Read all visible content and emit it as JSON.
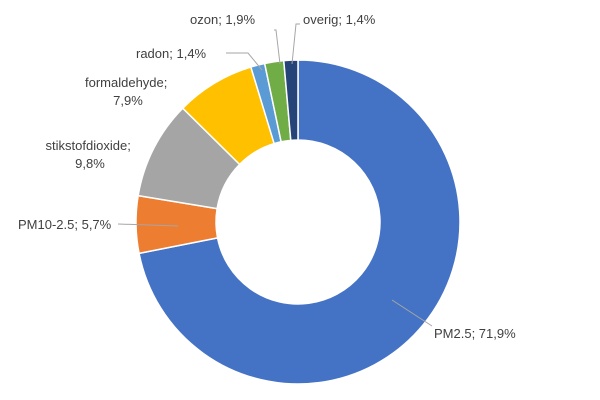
{
  "chart_data": {
    "type": "pie",
    "variant": "donut",
    "title": "",
    "legend": "none",
    "slices": [
      {
        "label": "PM2.5",
        "value": 71.9,
        "value_label": "71,9%",
        "color": "#4472c4"
      },
      {
        "label": "PM10-2.5",
        "value": 5.7,
        "value_label": "5,7%",
        "color": "#ed7d31"
      },
      {
        "label": "stikstofdioxide",
        "value": 9.8,
        "value_label": "9,8%",
        "color": "#a5a5a5"
      },
      {
        "label": "formaldehyde",
        "value": 7.9,
        "value_label": "7,9%",
        "color": "#ffc000"
      },
      {
        "label": "radon",
        "value": 1.4,
        "value_label": "1,4%",
        "color": "#5b9bd5"
      },
      {
        "label": "ozon",
        "value": 1.9,
        "value_label": "1,9%",
        "color": "#70ad47"
      },
      {
        "label": "overig",
        "value": 1.4,
        "value_label": "1,4%",
        "color": "#264478"
      }
    ]
  }
}
